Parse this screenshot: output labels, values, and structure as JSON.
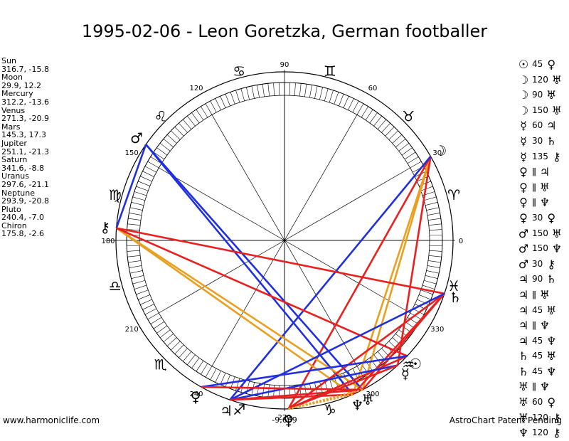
{
  "title": "1995-02-06 - Leon Goretzka, German footballer",
  "planets": [
    {
      "name": "Sun",
      "coords": "316.7, -15.8"
    },
    {
      "name": "Moon",
      "coords": "29.9, 12.2"
    },
    {
      "name": "Mercury",
      "coords": "312.2, -13.6"
    },
    {
      "name": "Venus",
      "coords": "271.3, -20.9"
    },
    {
      "name": "Mars",
      "coords": "145.3, 17.3"
    },
    {
      "name": "Jupiter",
      "coords": "251.1, -21.3"
    },
    {
      "name": "Saturn",
      "coords": "341.6, -8.8"
    },
    {
      "name": "Uranus",
      "coords": "297.6, -21.1"
    },
    {
      "name": "Neptune",
      "coords": "293.9, -20.8"
    },
    {
      "name": "Pluto",
      "coords": "240.4, -7.0"
    },
    {
      "name": "Chiron",
      "coords": "175.8, -2.6"
    }
  ],
  "aspects": [
    {
      "p1": "☉",
      "angle": "45",
      "p2": "♀"
    },
    {
      "p1": "☽",
      "angle": "120",
      "p2": "♅"
    },
    {
      "p1": "☽",
      "angle": "90",
      "p2": "♅"
    },
    {
      "p1": "☽",
      "angle": "150",
      "p2": "♅"
    },
    {
      "p1": "☿",
      "angle": "60",
      "p2": "♃"
    },
    {
      "p1": "☿",
      "angle": "30",
      "p2": "♄"
    },
    {
      "p1": "☿",
      "angle": "135",
      "p2": "⚷"
    },
    {
      "p1": "♀",
      "angle": "ǁ",
      "p2": "♃"
    },
    {
      "p1": "♀",
      "angle": "ǁ",
      "p2": "♅"
    },
    {
      "p1": "♀",
      "angle": "ǁ",
      "p2": "♆"
    },
    {
      "p1": "♀",
      "angle": "30",
      "p2": "♀"
    },
    {
      "p1": "♂",
      "angle": "150",
      "p2": "♅"
    },
    {
      "p1": "♂",
      "angle": "150",
      "p2": "♆"
    },
    {
      "p1": "♂",
      "angle": "30",
      "p2": "⚷"
    },
    {
      "p1": "♃",
      "angle": "90",
      "p2": "♄"
    },
    {
      "p1": "♃",
      "angle": "ǁ",
      "p2": "♅"
    },
    {
      "p1": "♃",
      "angle": "45",
      "p2": "♅"
    },
    {
      "p1": "♃",
      "angle": "ǁ",
      "p2": "♆"
    },
    {
      "p1": "♃",
      "angle": "45",
      "p2": "♆"
    },
    {
      "p1": "♄",
      "angle": "45",
      "p2": "♅"
    },
    {
      "p1": "♄",
      "angle": "45",
      "p2": "♆"
    },
    {
      "p1": "♅",
      "angle": "ǁ",
      "p2": "♆"
    },
    {
      "p1": "♅",
      "angle": "60",
      "p2": "♀"
    },
    {
      "p1": "♅",
      "angle": "120",
      "p2": "⚷"
    },
    {
      "p1": "♆",
      "angle": "120",
      "p2": "⚷"
    }
  ],
  "degree_labels": [
    "90",
    "120",
    "60",
    "150",
    "30",
    "180",
    "0",
    "210",
    "330",
    "240",
    "300",
    "270"
  ],
  "bottom_value": "-9,669",
  "zodiac_glyphs": [
    "♈",
    "♉",
    "♊",
    "♋",
    "♌",
    "♍",
    "♎",
    "♏",
    "♐",
    "♑",
    "♒",
    "♓"
  ],
  "chart_planets": [
    {
      "id": "sun",
      "glyph": "☉",
      "lon": 316.7
    },
    {
      "id": "moon",
      "glyph": "☽",
      "lon": 29.9
    },
    {
      "id": "mercury",
      "glyph": "☿",
      "lon": 312.2
    },
    {
      "id": "venus",
      "glyph": "♀",
      "lon": 271.3
    },
    {
      "id": "mars",
      "glyph": "♂",
      "lon": 145.3
    },
    {
      "id": "jupiter",
      "glyph": "♃",
      "lon": 251.1
    },
    {
      "id": "saturn",
      "glyph": "♄",
      "lon": 341.6
    },
    {
      "id": "uranus",
      "glyph": "♅",
      "lon": 297.6
    },
    {
      "id": "neptune",
      "glyph": "♆",
      "lon": 293.9
    },
    {
      "id": "pluto",
      "glyph": "♀",
      "lon": 240.4
    },
    {
      "id": "chiron",
      "glyph": "⚷",
      "lon": 175.8
    }
  ],
  "aspect_lines": [
    {
      "a": "moon",
      "b": "uranus",
      "color": "#e8a020",
      "dashed": false
    },
    {
      "a": "moon",
      "b": "neptune",
      "color": "#e8a020",
      "dashed": false
    },
    {
      "a": "moon",
      "b": "mercury",
      "color": "#e82020",
      "dashed": false
    },
    {
      "a": "moon",
      "b": "venus",
      "color": "#e82020",
      "dashed": false
    },
    {
      "a": "moon",
      "b": "jupiter",
      "color": "#2030e0",
      "dashed": false
    },
    {
      "a": "mars",
      "b": "chiron",
      "color": "#2030e0",
      "dashed": false
    },
    {
      "a": "mars",
      "b": "uranus",
      "color": "#2030e0",
      "dashed": false
    },
    {
      "a": "mars",
      "b": "neptune",
      "color": "#2030e0",
      "dashed": false
    },
    {
      "a": "chiron",
      "b": "uranus",
      "color": "#e8a020",
      "dashed": false
    },
    {
      "a": "chiron",
      "b": "neptune",
      "color": "#e8a020",
      "dashed": false
    },
    {
      "a": "chiron",
      "b": "saturn",
      "color": "#e82020",
      "dashed": false
    },
    {
      "a": "chiron",
      "b": "sun",
      "color": "#e82020",
      "dashed": false
    },
    {
      "a": "saturn",
      "b": "uranus",
      "color": "#e82020",
      "dashed": false
    },
    {
      "a": "saturn",
      "b": "neptune",
      "color": "#e82020",
      "dashed": false
    },
    {
      "a": "saturn",
      "b": "venus",
      "color": "#e82020",
      "dashed": false
    },
    {
      "a": "saturn",
      "b": "jupiter",
      "color": "#2030e0",
      "dashed": false
    },
    {
      "a": "sun",
      "b": "venus",
      "color": "#e82020",
      "dashed": false
    },
    {
      "a": "sun",
      "b": "pluto",
      "color": "#2030e0",
      "dashed": false
    },
    {
      "a": "mercury",
      "b": "jupiter",
      "color": "#2030e0",
      "dashed": false
    },
    {
      "a": "mercury",
      "b": "venus",
      "color": "#e82020",
      "dashed": false
    },
    {
      "a": "jupiter",
      "b": "uranus",
      "color": "#e82020",
      "dashed": false
    },
    {
      "a": "jupiter",
      "b": "neptune",
      "color": "#e82020",
      "dashed": false
    },
    {
      "a": "pluto",
      "b": "uranus",
      "color": "#e82020",
      "dashed": false
    },
    {
      "a": "venus",
      "b": "uranus",
      "color": "#e8a020",
      "dashed": true
    },
    {
      "a": "venus",
      "b": "neptune",
      "color": "#e8a020",
      "dashed": true
    }
  ],
  "footer": {
    "left": "www.harmoniclife.com",
    "right": "AstroChart Patent Pending"
  }
}
